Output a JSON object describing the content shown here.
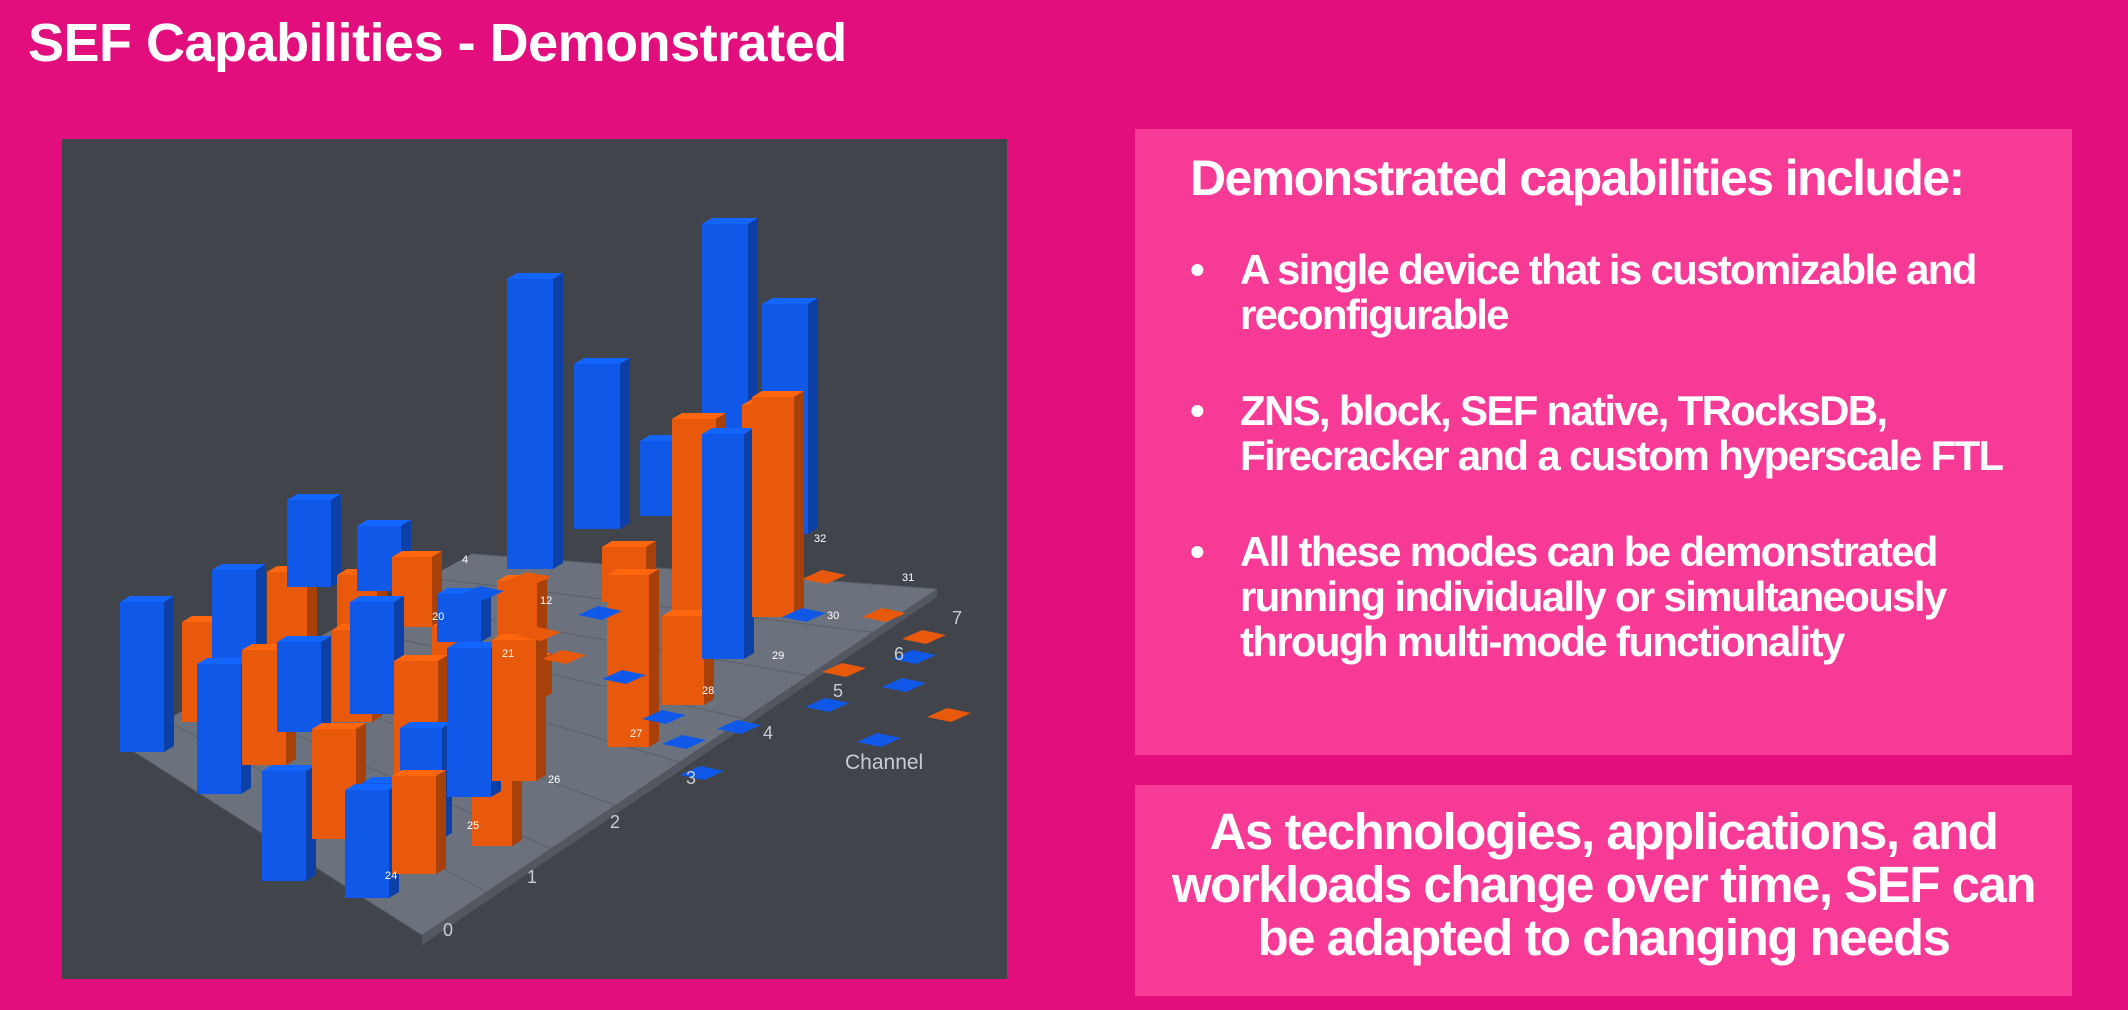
{
  "slide": {
    "title": "SEF Capabilities - Demonstrated"
  },
  "capabilities": {
    "heading": "Demonstrated capabilities include:",
    "bullet_glyph": "•",
    "items": [
      {
        "line1": "A single device that is customizable and",
        "line2": "reconfigurable"
      },
      {
        "line1": "ZNS, block, SEF native, TRocksDB,",
        "line2": "Firecracker and a custom hyperscale FTL"
      },
      {
        "line1": "All these modes can be demonstrated",
        "line2": "running individually or simultaneously",
        "line3": "through multi-mode functionality"
      }
    ]
  },
  "footer": {
    "line1": "As technologies, applications, and",
    "line2": "workloads change over time, SEF can",
    "line3": "be adapted to changing needs"
  },
  "chart_data": {
    "type": "bar",
    "style": "3d-grid",
    "colors": {
      "blue": "#1059e8",
      "orange": "#e8590c",
      "panel": "#42444b",
      "floor": "#6e7580"
    },
    "depth_axis_label": "Channel",
    "channel_ticks": [
      "0",
      "1",
      "2",
      "3",
      "4",
      "5",
      "6",
      "7"
    ],
    "bar_labels": [
      "24",
      "25",
      "26",
      "27",
      "28",
      "29",
      "30",
      "31",
      "32",
      "20",
      "21",
      "12",
      "4"
    ]
  }
}
